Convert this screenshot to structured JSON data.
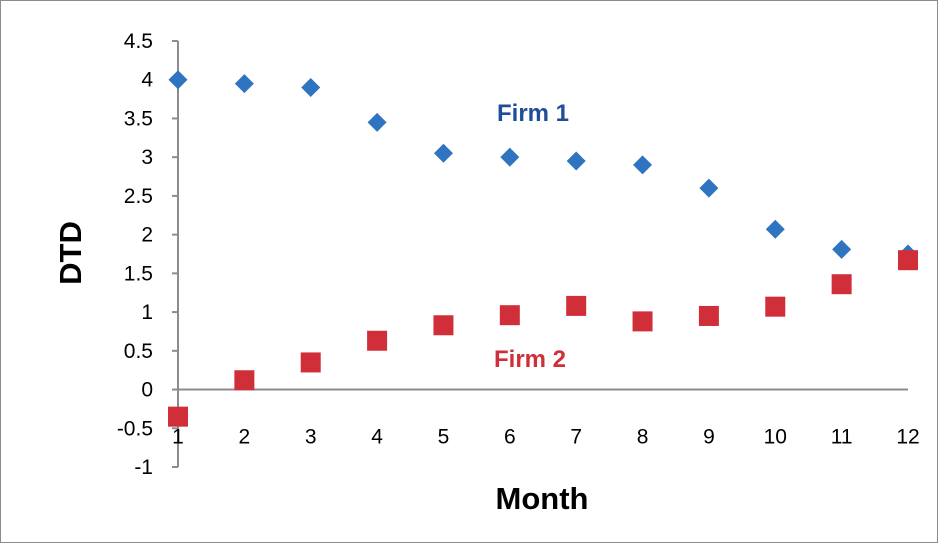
{
  "chart_data": {
    "type": "scatter",
    "title": "",
    "xlabel": "Month",
    "ylabel": "DTD",
    "x": [
      1,
      2,
      3,
      4,
      5,
      6,
      7,
      8,
      9,
      10,
      11,
      12
    ],
    "x_tick_labels": [
      "1",
      "2",
      "3",
      "4",
      "5",
      "6",
      "7",
      "8",
      "9",
      "10",
      "11",
      "12"
    ],
    "y_tick_labels": [
      "4.5",
      "4",
      "3.5",
      "3",
      "2.5",
      "2",
      "1.5",
      "1",
      "0.5",
      "0",
      "-0.5",
      "-1"
    ],
    "y_ticks": [
      4.5,
      4,
      3.5,
      3,
      2.5,
      2,
      1.5,
      1,
      0.5,
      0,
      -0.5,
      -1
    ],
    "xlim": [
      1,
      12
    ],
    "ylim": [
      -1,
      4.5
    ],
    "grid": false,
    "legend": "none",
    "series": [
      {
        "name": "Firm 1",
        "marker": "diamond",
        "color": "#2f74c0",
        "label_color": "#1f4e99",
        "values": [
          4.0,
          3.95,
          3.9,
          3.45,
          3.05,
          3.0,
          2.95,
          2.9,
          2.6,
          2.07,
          1.81,
          1.75
        ]
      },
      {
        "name": "Firm 2",
        "marker": "square",
        "color": "#d02f3a",
        "label_color": "#d02f3a",
        "values": [
          -0.35,
          0.12,
          0.35,
          0.63,
          0.83,
          0.96,
          1.08,
          0.88,
          0.95,
          1.07,
          1.36,
          1.67
        ]
      }
    ]
  }
}
